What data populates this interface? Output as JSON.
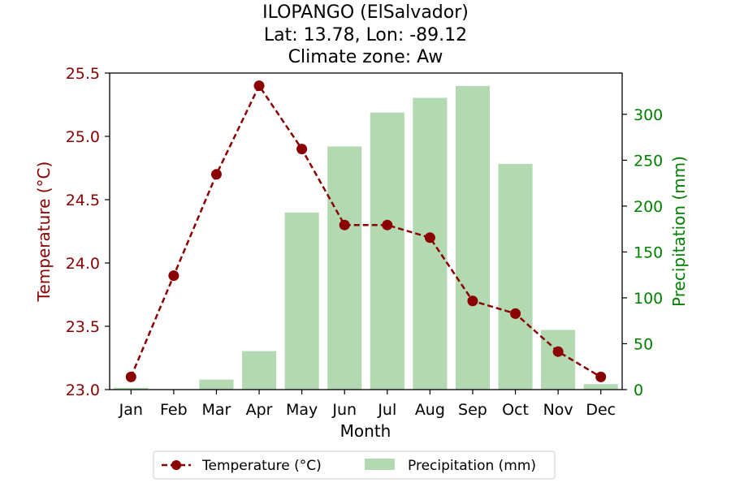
{
  "chart_data": {
    "type": "bar+line",
    "title_lines": [
      "ILOPANGO (ElSalvador)",
      "Lat: 13.78, Lon: -89.12",
      "Climate zone: Aw"
    ],
    "xlabel": "Month",
    "categories": [
      "Jan",
      "Feb",
      "Mar",
      "Apr",
      "May",
      "Jun",
      "Jul",
      "Aug",
      "Sep",
      "Oct",
      "Nov",
      "Dec"
    ],
    "temperature": {
      "name": "Temperature (°C)",
      "axis_label": "Temperature (°C)",
      "values": [
        23.1,
        23.9,
        24.7,
        25.4,
        24.9,
        24.3,
        24.3,
        24.2,
        23.7,
        23.6,
        23.3,
        23.1
      ],
      "ylim": [
        23.0,
        25.5
      ],
      "ticks": [
        "23.0",
        "23.5",
        "24.0",
        "24.5",
        "25.0",
        "25.5"
      ],
      "color": "#8b0000",
      "style": "dashed line with circle markers"
    },
    "precipitation": {
      "name": "Precipitation (mm)",
      "axis_label": "Precipitation (mm)",
      "values": [
        2,
        0,
        11,
        42,
        193,
        265,
        302,
        318,
        331,
        246,
        65,
        6
      ],
      "ylim": [
        0,
        345
      ],
      "ticks": [
        "0",
        "50",
        "100",
        "150",
        "200",
        "250",
        "300"
      ],
      "color": "#b2d9b2",
      "axis_color": "#008000"
    },
    "legend": {
      "placement": "bottom-center",
      "entries": [
        "Temperature (°C)",
        "Precipitation (mm)"
      ]
    },
    "grid": false
  }
}
